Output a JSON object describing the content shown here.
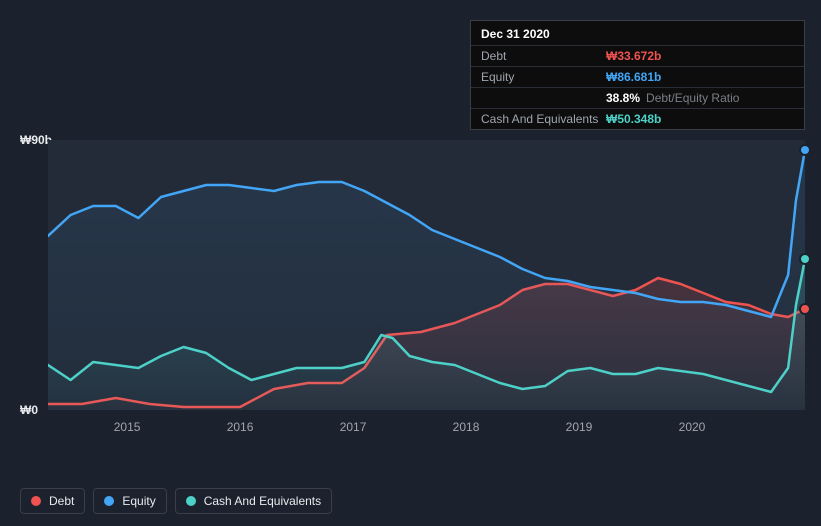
{
  "tooltip": {
    "date": "Dec 31 2020",
    "rows": [
      {
        "label": "Debt",
        "value": "₩33.672b",
        "color": "#ef5350",
        "extra": ""
      },
      {
        "label": "Equity",
        "value": "₩86.681b",
        "color": "#42a5f5",
        "extra": ""
      },
      {
        "label": "",
        "value": "38.8%",
        "color": "#ffffff",
        "extra": "Debt/Equity Ratio"
      },
      {
        "label": "Cash And Equivalents",
        "value": "₩50.348b",
        "color": "#4dd0c7",
        "extra": ""
      }
    ]
  },
  "chart": {
    "type": "area",
    "background_color": "#1b222d",
    "plot_background": "#232b38",
    "grid_color": "#2a3240",
    "ylim": [
      0,
      90
    ],
    "y_ticks": [
      {
        "v": 90,
        "label": "₩90b"
      },
      {
        "v": 0,
        "label": "₩0"
      }
    ],
    "x_range": [
      2014.3,
      2021.0
    ],
    "x_ticks": [
      2015,
      2016,
      2017,
      2018,
      2019,
      2020
    ],
    "series": [
      {
        "name": "Debt",
        "color": "#ef5350",
        "fill_opacity": 0.18,
        "line_width": 2.5,
        "points": [
          [
            2014.3,
            2
          ],
          [
            2014.6,
            2
          ],
          [
            2014.9,
            4
          ],
          [
            2015.2,
            2
          ],
          [
            2015.5,
            1
          ],
          [
            2015.8,
            1
          ],
          [
            2016.0,
            1
          ],
          [
            2016.3,
            7
          ],
          [
            2016.6,
            9
          ],
          [
            2016.9,
            9
          ],
          [
            2017.1,
            14
          ],
          [
            2017.3,
            25
          ],
          [
            2017.6,
            26
          ],
          [
            2017.9,
            29
          ],
          [
            2018.1,
            32
          ],
          [
            2018.3,
            35
          ],
          [
            2018.5,
            40
          ],
          [
            2018.7,
            42
          ],
          [
            2018.9,
            42
          ],
          [
            2019.1,
            40
          ],
          [
            2019.3,
            38
          ],
          [
            2019.5,
            40
          ],
          [
            2019.7,
            44
          ],
          [
            2019.9,
            42
          ],
          [
            2020.1,
            39
          ],
          [
            2020.3,
            36
          ],
          [
            2020.5,
            35
          ],
          [
            2020.7,
            32
          ],
          [
            2020.85,
            31
          ],
          [
            2021.0,
            33.7
          ]
        ]
      },
      {
        "name": "Equity",
        "color": "#42a5f5",
        "fill_opacity": 0.1,
        "line_width": 2.5,
        "points": [
          [
            2014.3,
            58
          ],
          [
            2014.5,
            65
          ],
          [
            2014.7,
            68
          ],
          [
            2014.9,
            68
          ],
          [
            2015.1,
            64
          ],
          [
            2015.3,
            71
          ],
          [
            2015.5,
            73
          ],
          [
            2015.7,
            75
          ],
          [
            2015.9,
            75
          ],
          [
            2016.1,
            74
          ],
          [
            2016.3,
            73
          ],
          [
            2016.5,
            75
          ],
          [
            2016.7,
            76
          ],
          [
            2016.9,
            76
          ],
          [
            2017.1,
            73
          ],
          [
            2017.3,
            69
          ],
          [
            2017.5,
            65
          ],
          [
            2017.7,
            60
          ],
          [
            2017.9,
            57
          ],
          [
            2018.1,
            54
          ],
          [
            2018.3,
            51
          ],
          [
            2018.5,
            47
          ],
          [
            2018.7,
            44
          ],
          [
            2018.9,
            43
          ],
          [
            2019.1,
            41
          ],
          [
            2019.3,
            40
          ],
          [
            2019.5,
            39
          ],
          [
            2019.7,
            37
          ],
          [
            2019.9,
            36
          ],
          [
            2020.1,
            36
          ],
          [
            2020.3,
            35
          ],
          [
            2020.5,
            33
          ],
          [
            2020.7,
            31
          ],
          [
            2020.85,
            45
          ],
          [
            2020.92,
            70
          ],
          [
            2021.0,
            86.7
          ]
        ]
      },
      {
        "name": "Cash And Equivalents",
        "color": "#4dd0c7",
        "fill_opacity": 0.2,
        "line_width": 2.5,
        "points": [
          [
            2014.3,
            15
          ],
          [
            2014.5,
            10
          ],
          [
            2014.7,
            16
          ],
          [
            2014.9,
            15
          ],
          [
            2015.1,
            14
          ],
          [
            2015.3,
            18
          ],
          [
            2015.5,
            21
          ],
          [
            2015.7,
            19
          ],
          [
            2015.9,
            14
          ],
          [
            2016.1,
            10
          ],
          [
            2016.3,
            12
          ],
          [
            2016.5,
            14
          ],
          [
            2016.7,
            14
          ],
          [
            2016.9,
            14
          ],
          [
            2017.1,
            16
          ],
          [
            2017.25,
            25
          ],
          [
            2017.35,
            24
          ],
          [
            2017.5,
            18
          ],
          [
            2017.7,
            16
          ],
          [
            2017.9,
            15
          ],
          [
            2018.1,
            12
          ],
          [
            2018.3,
            9
          ],
          [
            2018.5,
            7
          ],
          [
            2018.7,
            8
          ],
          [
            2018.9,
            13
          ],
          [
            2019.1,
            14
          ],
          [
            2019.3,
            12
          ],
          [
            2019.5,
            12
          ],
          [
            2019.7,
            14
          ],
          [
            2019.9,
            13
          ],
          [
            2020.1,
            12
          ],
          [
            2020.3,
            10
          ],
          [
            2020.5,
            8
          ],
          [
            2020.7,
            6
          ],
          [
            2020.85,
            14
          ],
          [
            2020.92,
            35
          ],
          [
            2021.0,
            50.3
          ]
        ]
      }
    ],
    "end_markers": [
      {
        "color": "#42a5f5",
        "x": 2021.0,
        "y": 86.7
      },
      {
        "color": "#4dd0c7",
        "x": 2021.0,
        "y": 50.3
      },
      {
        "color": "#ef5350",
        "x": 2021.0,
        "y": 33.7
      }
    ],
    "legend": [
      {
        "label": "Debt",
        "color": "#ef5350"
      },
      {
        "label": "Equity",
        "color": "#42a5f5"
      },
      {
        "label": "Cash And Equivalents",
        "color": "#4dd0c7"
      }
    ]
  }
}
